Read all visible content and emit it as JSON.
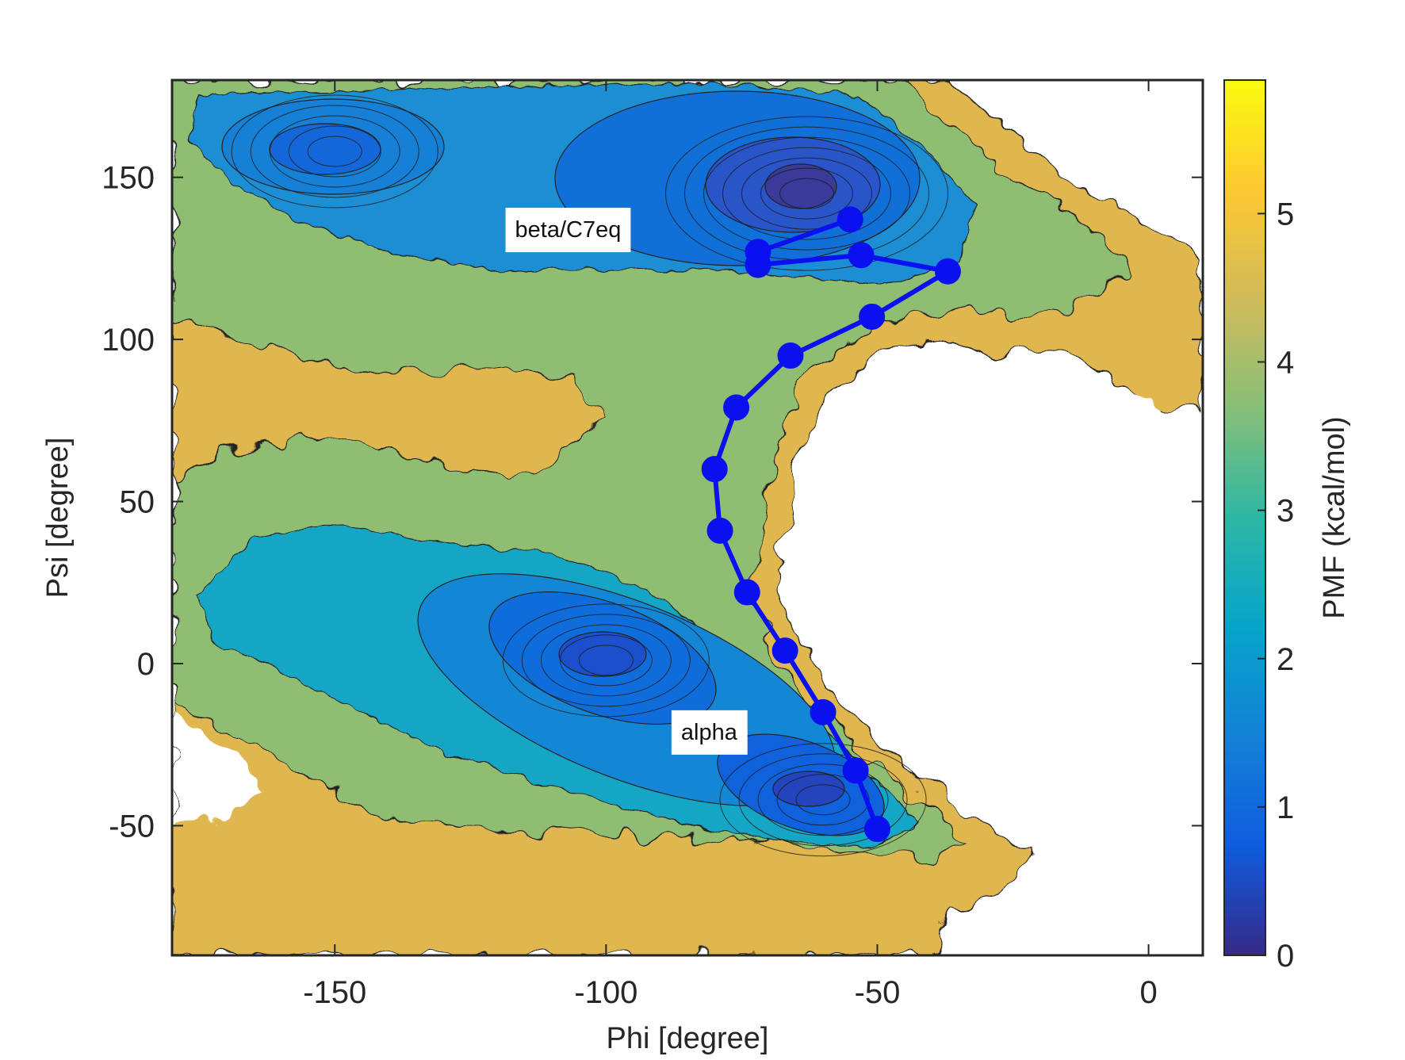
{
  "chart_data": {
    "type": "heatmap",
    "title": "",
    "xlabel": "Phi [degree]",
    "ylabel": "Psi [degree]",
    "xlim": [
      -180,
      10
    ],
    "ylim": [
      -90,
      180
    ],
    "x_ticks": [
      -150,
      -100,
      -50,
      0
    ],
    "y_ticks": [
      -50,
      0,
      50,
      100,
      150
    ],
    "grid": false,
    "colormap": "parula",
    "colorbar": {
      "label": "PMF (kcal/mol)",
      "range": [
        0,
        5.9
      ],
      "ticks": [
        0,
        1,
        2,
        3,
        4,
        5
      ],
      "colors": [
        "#352a87",
        "#0f5cdd",
        "#1481d6",
        "#06a4ca",
        "#2eb7a4",
        "#87bf77",
        "#d1bb59",
        "#fec832",
        "#f9fb0e"
      ]
    },
    "contour_spacing_kcal": 0.25,
    "minima": [
      {
        "label": "beta/C7eq",
        "phi": -63,
        "psi": 145,
        "pmf": 0.2
      },
      {
        "label": "",
        "phi": -100,
        "psi": 1,
        "pmf": 0.9
      },
      {
        "label": "",
        "phi": -60,
        "psi": -42,
        "pmf": 0.6
      },
      {
        "label": "",
        "phi": -150,
        "psi": 158,
        "pmf": 1.3
      }
    ],
    "annotations": [
      {
        "text": "beta/C7eq",
        "phi": -107,
        "psi": 134
      },
      {
        "text": "alpha",
        "phi": -81,
        "psi": -21
      }
    ],
    "series": [
      {
        "type": "line",
        "color": "#0a10f0",
        "x": [
          -55,
          -72,
          -72,
          -53,
          -37,
          -51,
          -66,
          -76,
          -80,
          -79,
          -74,
          -67,
          -60,
          -54,
          -50
        ],
        "y": [
          137,
          127,
          123,
          126,
          121,
          107,
          95,
          79,
          60,
          41,
          22,
          4,
          -15,
          -33,
          -51
        ]
      }
    ]
  }
}
